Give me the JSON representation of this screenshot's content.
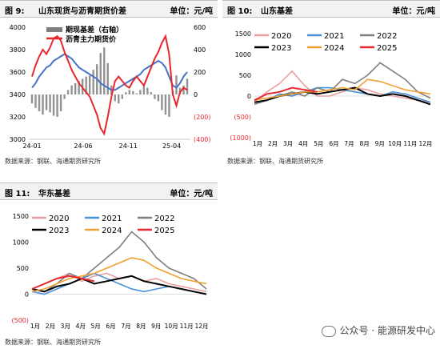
{
  "panels": [
    {
      "fig": "图 9:",
      "title": "山东现货与沥青期货价差",
      "unit": "单位：元/吨",
      "source": "数据来源：钢联、海通期货研究所"
    },
    {
      "fig": "图 10:",
      "title": "山东基差",
      "unit": "单位：元/吨",
      "source": "数据来源：钢联、海通期货研究所"
    },
    {
      "fig": "图 11:",
      "title": "华东基差",
      "unit": "单位：元/吨",
      "source": "数据来源：钢联、海通期货研究所"
    }
  ],
  "watermark": {
    "text": "公众号 · 能源研发中心",
    "icon": "wechat-icon"
  },
  "chart_data": [
    {
      "type": "bar+line",
      "title": "",
      "legend": [
        "期现基差（右轴）",
        "沥青主力期货价"
      ],
      "x_ticks": [
        "24-01",
        "24-06",
        "24-11",
        "25-04"
      ],
      "y_left": {
        "ticks": [
          "3000",
          "3200",
          "3400",
          "3600",
          "3800",
          "4000"
        ],
        "range": [
          3000,
          4000
        ]
      },
      "y_right": {
        "ticks": [
          "(400)",
          "(200)",
          "0",
          "200",
          "400",
          "600"
        ],
        "range": [
          -400,
          600
        ]
      },
      "colors": {
        "basis": "#7f7f7f",
        "futures": "#e8262d",
        "spot": "#4472c4"
      },
      "series": [
        {
          "name": "沥青主力期货价",
          "values": [
            3560,
            3660,
            3740,
            3800,
            3760,
            3820,
            3900,
            3920,
            3880,
            3780,
            3700,
            3620,
            3560,
            3500,
            3460,
            3420,
            3380,
            3300,
            3220,
            3100,
            3050,
            3200,
            3380,
            3520,
            3560,
            3520,
            3480,
            3460,
            3520,
            3560,
            3520,
            3480,
            3560,
            3640,
            3720,
            3780,
            3860,
            3920,
            3760,
            3400,
            3300,
            3420,
            3460,
            3440
          ]
        },
        {
          "values": [
            3460,
            3500,
            3560,
            3600,
            3640,
            3660,
            3700,
            3720,
            3740,
            3760,
            3740,
            3720,
            3680,
            3640,
            3620,
            3600,
            3580,
            3560,
            3540,
            3500,
            3480,
            3460,
            3440,
            3440,
            3460,
            3480,
            3500,
            3520,
            3540,
            3560,
            3580,
            3620,
            3640,
            3660,
            3680,
            3700,
            3680,
            3640,
            3560,
            3480,
            3460,
            3500,
            3560,
            3600
          ]
        },
        {
          "name": "期现基差（右轴）",
          "values": [
            -80,
            -120,
            -150,
            -180,
            -140,
            -160,
            -190,
            -200,
            -150,
            -40,
            40,
            80,
            100,
            120,
            140,
            160,
            170,
            220,
            270,
            370,
            420,
            280,
            80,
            -60,
            -80,
            -40,
            20,
            40,
            30,
            10,
            40,
            80,
            60,
            20,
            -40,
            -60,
            -140,
            -180,
            -200,
            30,
            170,
            60,
            80,
            140
          ]
        }
      ]
    },
    {
      "type": "line",
      "title": "",
      "x_ticks": [
        "1月",
        "2月",
        "3月",
        "4月",
        "5月",
        "6月",
        "7月",
        "8月",
        "9月",
        "10月",
        "11月",
        "12月"
      ],
      "y_ticks": [
        "(1000)",
        "(500)",
        "0",
        "500",
        "1000",
        "1500"
      ],
      "ylim": [
        -1000,
        1500
      ],
      "series": [
        {
          "name": "2020",
          "color": "#e8a0a0",
          "values": [
            -150,
            100,
            300,
            600,
            250,
            0,
            0,
            100,
            200,
            150,
            50,
            0,
            -50,
            -100,
            -150
          ]
        },
        {
          "name": "2021",
          "color": "#4a90d9",
          "values": [
            -150,
            -100,
            50,
            0,
            100,
            200,
            200,
            150,
            100,
            50,
            0,
            100,
            50,
            -50,
            -150
          ]
        },
        {
          "name": "2022",
          "color": "#7f7f7f",
          "values": [
            -200,
            -100,
            0,
            100,
            0,
            200,
            100,
            400,
            300,
            500,
            800,
            600,
            400,
            100,
            -50
          ]
        },
        {
          "name": "2023",
          "color": "#000000",
          "values": [
            -150,
            -100,
            0,
            50,
            100,
            50,
            100,
            150,
            200,
            50,
            0,
            50,
            0,
            -100,
            -200
          ]
        },
        {
          "name": "2024",
          "color": "#f0a030",
          "values": [
            -100,
            -50,
            0,
            50,
            100,
            100,
            150,
            200,
            150,
            400,
            350,
            250,
            150,
            100,
            50
          ]
        },
        {
          "name": "2025",
          "color": "#e8262d",
          "values": [
            -100,
            50,
            100,
            200,
            150,
            100
          ]
        }
      ]
    },
    {
      "type": "line",
      "title": "",
      "x_ticks": [
        "1月",
        "2月",
        "3月",
        "4月",
        "5月",
        "6月",
        "7月",
        "8月",
        "9月",
        "10月",
        "11月",
        "12月"
      ],
      "y_ticks": [
        "(500)",
        "0",
        "500",
        "1000",
        "1500"
      ],
      "ylim": [
        -500,
        1500
      ],
      "series": [
        {
          "name": "2020",
          "color": "#e8a0a0",
          "values": [
            100,
            200,
            300,
            400,
            250,
            350,
            400,
            300,
            350,
            250,
            300,
            200,
            150,
            100,
            50
          ]
        },
        {
          "name": "2021",
          "color": "#4a90d9",
          "values": [
            50,
            0,
            100,
            200,
            300,
            400,
            300,
            200,
            100,
            50,
            100,
            150,
            100,
            50,
            0
          ]
        },
        {
          "name": "2022",
          "color": "#7f7f7f",
          "values": [
            100,
            50,
            200,
            400,
            300,
            500,
            700,
            900,
            1200,
            1000,
            700,
            500,
            400,
            300,
            100
          ]
        },
        {
          "name": "2023",
          "color": "#000000",
          "values": [
            100,
            50,
            150,
            200,
            300,
            200,
            250,
            300,
            350,
            250,
            200,
            150,
            100,
            50,
            0
          ]
        },
        {
          "name": "2024",
          "color": "#f0a030",
          "values": [
            50,
            100,
            200,
            300,
            350,
            400,
            500,
            600,
            700,
            650,
            500,
            400,
            300,
            250,
            200
          ]
        },
        {
          "name": "2025",
          "color": "#e8262d",
          "values": [
            100,
            200,
            300,
            350,
            300,
            250
          ]
        }
      ]
    }
  ]
}
